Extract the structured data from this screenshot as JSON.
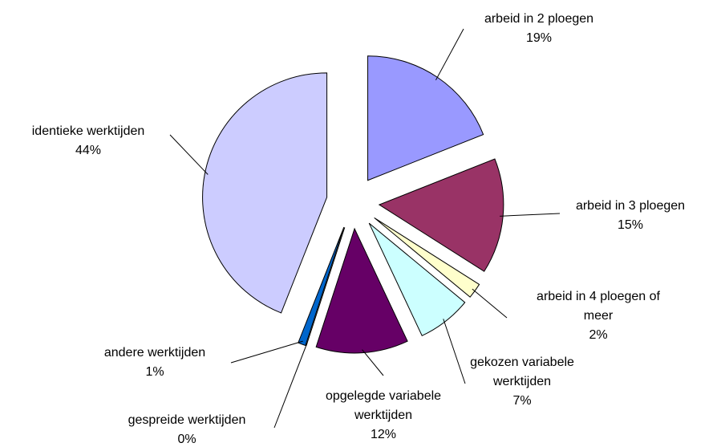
{
  "chart_data": {
    "type": "pie",
    "categories": [
      "arbeid in 2 ploegen",
      "arbeid in 3 ploegen",
      "arbeid in 4 ploegen of meer",
      "gekozen variabele werktijden",
      "opgelegde variabele werktijden",
      "gespreide werktijden",
      "andere werktijden",
      "identieke werktijden"
    ],
    "values": [
      19,
      15,
      2,
      7,
      12,
      0,
      1,
      44
    ],
    "value_labels": [
      "19%",
      "15%",
      "2%",
      "7%",
      "12%",
      "0%",
      "1%",
      "44%"
    ],
    "colors": [
      "#9999ff",
      "#993366",
      "#ffffcc",
      "#ccffff",
      "#660066",
      "#ff8080",
      "#0066cc",
      "#ccccff"
    ]
  }
}
